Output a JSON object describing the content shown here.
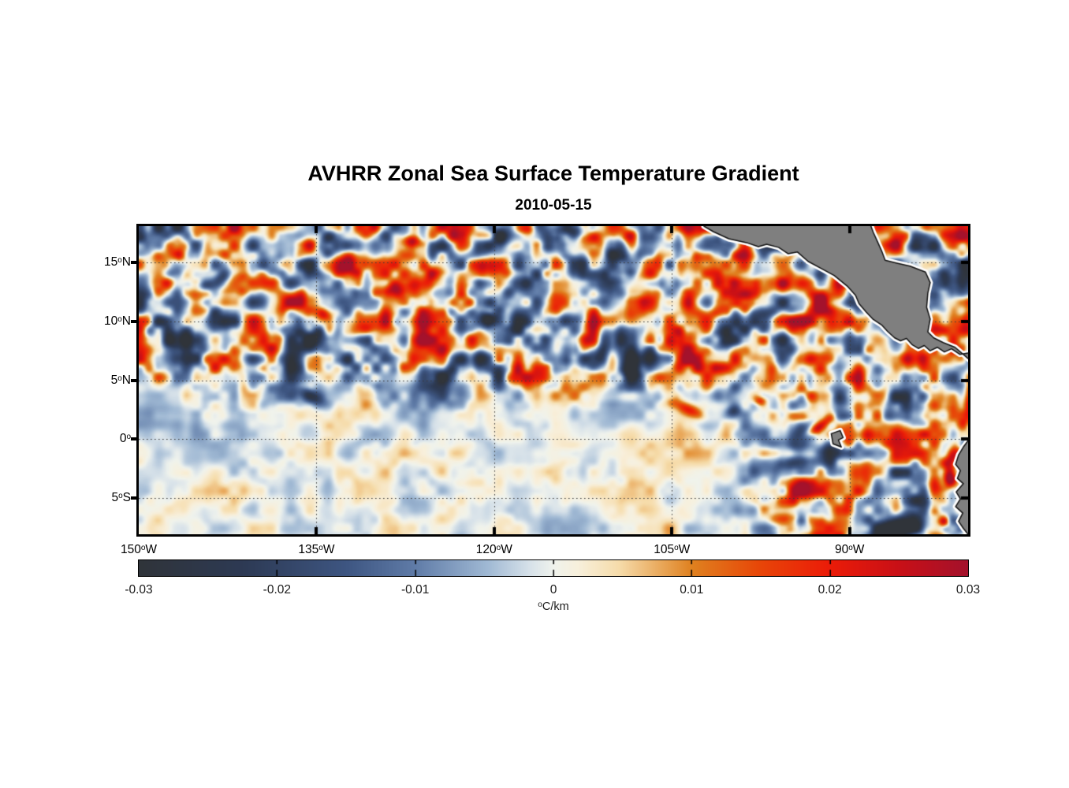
{
  "figure": {
    "title": "AVHRR Zonal Sea Surface Temperature Gradient",
    "subtitle": "2010-05-15"
  },
  "chart_data": {
    "type": "heatmap",
    "title": "AVHRR Zonal Sea Surface Temperature Gradient",
    "date": "2010-05-15",
    "projection": "longitude-latitude map, eastern tropical Pacific",
    "deg_symbol": "o",
    "extent": {
      "lon_min": -150,
      "lon_max": -80,
      "lat_min": -8.1,
      "lat_max": 18.1
    },
    "xticks": [
      {
        "deg": "150",
        "hemi": "W",
        "lon": -150
      },
      {
        "deg": "135",
        "hemi": "W",
        "lon": -135
      },
      {
        "deg": "120",
        "hemi": "W",
        "lon": -120
      },
      {
        "deg": "105",
        "hemi": "W",
        "lon": -105
      },
      {
        "deg": "90",
        "hemi": "W",
        "lon": -90
      }
    ],
    "yticks": [
      {
        "deg": "15",
        "hemi": "N",
        "lat": 15
      },
      {
        "deg": "10",
        "hemi": "N",
        "lat": 10
      },
      {
        "deg": "5",
        "hemi": "N",
        "lat": 5
      },
      {
        "deg": "0",
        "hemi": "",
        "lat": 0
      },
      {
        "deg": "5",
        "hemi": "S",
        "lat": -5
      }
    ],
    "grid": {
      "lons": [
        -135,
        -120,
        -105,
        -90
      ],
      "lats": [
        15,
        10,
        5,
        0,
        -5
      ],
      "style": "dotted",
      "color": "#3a3a3a"
    },
    "colorbar": {
      "min": -0.03,
      "max": 0.03,
      "ticks": [
        -0.03,
        -0.02,
        -0.01,
        0,
        0.01,
        0.02,
        0.03
      ],
      "tick_labels": [
        "-0.03",
        "-0.02",
        "-0.01",
        "0",
        "0.01",
        "0.02",
        "0.03"
      ],
      "unit_sup": "o",
      "unit_text": "C/km",
      "orientation": "horizontal"
    },
    "colormap": [
      [
        0.0,
        "#30343a"
      ],
      [
        0.125,
        "#2d3a54"
      ],
      [
        0.25,
        "#3e5682"
      ],
      [
        0.333,
        "#607ca8"
      ],
      [
        0.42,
        "#a0b9d4"
      ],
      [
        0.47,
        "#d6e1e9"
      ],
      [
        0.5,
        "#f0f3ed"
      ],
      [
        0.53,
        "#f8f0dc"
      ],
      [
        0.58,
        "#f6dcaa"
      ],
      [
        0.667,
        "#e08220"
      ],
      [
        0.75,
        "#e84608"
      ],
      [
        0.833,
        "#ec1c08"
      ],
      [
        0.92,
        "#c81018"
      ],
      [
        1.0,
        "#a4122c"
      ]
    ],
    "land_color": "#7f7f7f",
    "coast_color": "#111111",
    "coast_halo_color": "#ffffff",
    "land": [
      {
        "name": "central-america",
        "pts": [
          [
            -102.3,
            18.6
          ],
          [
            -102.3,
            18.1
          ],
          [
            -101.5,
            17.63
          ],
          [
            -100.2,
            17.03
          ],
          [
            -98.7,
            16.7
          ],
          [
            -97.7,
            16.36
          ],
          [
            -97.0,
            16.56
          ],
          [
            -96.0,
            16.3
          ],
          [
            -95.2,
            15.76
          ],
          [
            -94.4,
            15.9
          ],
          [
            -93.5,
            15.1
          ],
          [
            -92.5,
            14.56
          ],
          [
            -91.3,
            13.9
          ],
          [
            -90.2,
            13.0
          ],
          [
            -89.5,
            12.22
          ],
          [
            -89.2,
            11.5
          ],
          [
            -88.6,
            10.8
          ],
          [
            -88.0,
            10.16
          ],
          [
            -87.3,
            9.7
          ],
          [
            -86.8,
            9.15
          ],
          [
            -86.2,
            8.6
          ],
          [
            -85.7,
            8.35
          ],
          [
            -85.2,
            8.55
          ],
          [
            -84.7,
            8.0
          ],
          [
            -84.2,
            7.7
          ],
          [
            -83.7,
            7.95
          ],
          [
            -83.2,
            7.5
          ],
          [
            -82.6,
            7.8
          ],
          [
            -82.0,
            7.4
          ],
          [
            -81.4,
            7.67
          ],
          [
            -80.7,
            7.2
          ],
          [
            -79.5,
            7.4
          ],
          [
            -79.5,
            6.4
          ],
          [
            -81.1,
            7.8
          ],
          [
            -82.1,
            8.2
          ],
          [
            -82.9,
            8.6
          ],
          [
            -83.4,
            9.1
          ],
          [
            -83.2,
            10.2
          ],
          [
            -83.5,
            11.2
          ],
          [
            -83.4,
            12.4
          ],
          [
            -83.2,
            13.3
          ],
          [
            -83.6,
            14.2
          ],
          [
            -84.9,
            14.7
          ],
          [
            -86.0,
            14.95
          ],
          [
            -87.0,
            15.2
          ],
          [
            -87.3,
            16.0
          ],
          [
            -87.7,
            16.9
          ],
          [
            -88.0,
            17.56
          ],
          [
            -88.2,
            18.1
          ],
          [
            -88.2,
            18.6
          ]
        ]
      },
      {
        "name": "south-america",
        "pts": [
          [
            -79.5,
            0.3
          ],
          [
            -80.0,
            -0.14
          ],
          [
            -80.4,
            -0.68
          ],
          [
            -80.8,
            -1.35
          ],
          [
            -81.05,
            -2.15
          ],
          [
            -80.65,
            -2.68
          ],
          [
            -80.9,
            -3.35
          ],
          [
            -80.4,
            -3.8
          ],
          [
            -81.0,
            -4.5
          ],
          [
            -80.65,
            -5.1
          ],
          [
            -81.05,
            -5.75
          ],
          [
            -80.45,
            -6.3
          ],
          [
            -80.8,
            -7.0
          ],
          [
            -80.4,
            -7.6
          ],
          [
            -80.0,
            -8.1
          ],
          [
            -79.5,
            -8.6
          ]
        ]
      },
      {
        "name": "galapagos-islands",
        "pts": [
          [
            -91.55,
            0.45
          ],
          [
            -90.8,
            0.72
          ],
          [
            -90.55,
            0.12
          ],
          [
            -90.95,
            -0.08
          ],
          [
            -90.7,
            -0.68
          ],
          [
            -91.4,
            -0.41
          ]
        ]
      }
    ],
    "features": [
      {
        "lon": -92.55,
        "lat": 1.0,
        "rlon": 0.45,
        "rlat": 1.5,
        "rot": -58,
        "value": 0.034
      },
      {
        "lon": -91.3,
        "lat": -1.2,
        "rlon": 1.1,
        "rlat": 0.9,
        "rot": 0,
        "value": -0.03
      },
      {
        "lon": -94.0,
        "lat": 2.9,
        "rlon": 0.9,
        "rlat": 0.7,
        "rot": 0,
        "value": -0.022
      },
      {
        "lon": -81.3,
        "lat": -1.6,
        "rlon": 0.55,
        "rlat": 1.2,
        "rot": -20,
        "value": 0.035
      },
      {
        "lon": -81.6,
        "lat": -3.4,
        "rlon": 0.5,
        "rlat": 0.8,
        "rot": 0,
        "value": 0.03
      },
      {
        "lon": -82.8,
        "lat": -5.6,
        "rlon": 1.6,
        "rlat": 1.3,
        "rot": -30,
        "value": -0.03
      },
      {
        "lon": -85.0,
        "lat": -7.3,
        "rlon": 1.8,
        "rlat": 1.0,
        "rot": 0,
        "value": -0.026
      },
      {
        "lon": -82.0,
        "lat": -7.1,
        "rlon": 0.4,
        "rlat": 0.4,
        "rot": 0,
        "value": 0.022
      },
      {
        "lon": -113.6,
        "lat": 17.6,
        "rlon": 1.8,
        "rlat": 0.8,
        "rot": 0,
        "value": -0.03
      },
      {
        "lon": -117.2,
        "lat": 17.9,
        "rlon": 0.9,
        "rlat": 0.6,
        "rot": 0,
        "value": 0.032
      },
      {
        "lon": -108.6,
        "lat": 17.3,
        "rlon": 0.8,
        "rlat": 0.6,
        "rot": 0,
        "value": 0.028
      },
      {
        "lon": -119.5,
        "lat": 17.2,
        "rlon": 0.7,
        "rlat": 0.8,
        "rot": 0,
        "value": -0.024
      },
      {
        "lon": -125.5,
        "lat": 14.3,
        "rlon": 1.4,
        "rlat": 0.8,
        "rot": -40,
        "value": 0.024
      },
      {
        "lon": -126.9,
        "lat": 16.8,
        "rlon": 0.8,
        "rlat": 0.5,
        "rot": 0,
        "value": 0.022
      },
      {
        "lon": -143.2,
        "lat": 13.5,
        "rlon": 0.6,
        "rlat": 1.6,
        "rot": -60,
        "value": -0.024
      },
      {
        "lon": -146.5,
        "lat": 15.5,
        "rlon": 0.8,
        "rlat": 0.5,
        "rot": 0,
        "value": 0.02
      },
      {
        "lon": -134.3,
        "lat": 10.6,
        "rlon": 0.6,
        "rlat": 0.5,
        "rot": 0,
        "value": 0.022
      },
      {
        "lon": -120.4,
        "lat": 10.3,
        "rlon": 0.8,
        "rlat": 0.6,
        "rot": 0,
        "value": -0.022
      },
      {
        "lon": -128.3,
        "lat": 12.5,
        "rlon": 0.9,
        "rlat": 0.6,
        "rot": -30,
        "value": 0.022
      },
      {
        "lon": -108.4,
        "lat": 5.8,
        "rlon": 0.7,
        "rlat": 0.9,
        "rot": 0,
        "value": -0.024
      },
      {
        "lon": -88.1,
        "lat": 10.75,
        "rlon": 0.5,
        "rlat": 0.5,
        "rot": 0,
        "value": 0.028
      },
      {
        "lon": -135.5,
        "lat": 3.6,
        "rlon": 1.2,
        "rlat": 0.6,
        "rot": -30,
        "value": -0.02
      },
      {
        "lon": -103.8,
        "lat": 2.6,
        "rlon": 1.5,
        "rlat": 0.5,
        "rot": -25,
        "value": 0.02
      },
      {
        "lon": -99.8,
        "lat": 2.3,
        "rlon": 0.6,
        "rlat": 0.5,
        "rot": 0,
        "value": -0.018
      },
      {
        "lon": -97.5,
        "lat": 3.2,
        "rlon": 0.5,
        "rlat": 0.4,
        "rot": 0,
        "value": 0.02
      }
    ],
    "noise": {
      "seed": 20100515,
      "octaves": [
        {
          "cell": 24,
          "amp": 0.55,
          "shear": 0.5
        },
        {
          "cell": 12,
          "amp": 0.8,
          "shear": 0.0
        },
        {
          "cell": 6,
          "amp": 0.42,
          "shear": 0.0
        }
      ],
      "value_scale": 0.03,
      "amp_base": 0.2,
      "note": "mesoscale SST zonal-gradient field; energetic north of ~3N and east of ~100W, quiet in the south-west quadrant"
    }
  }
}
